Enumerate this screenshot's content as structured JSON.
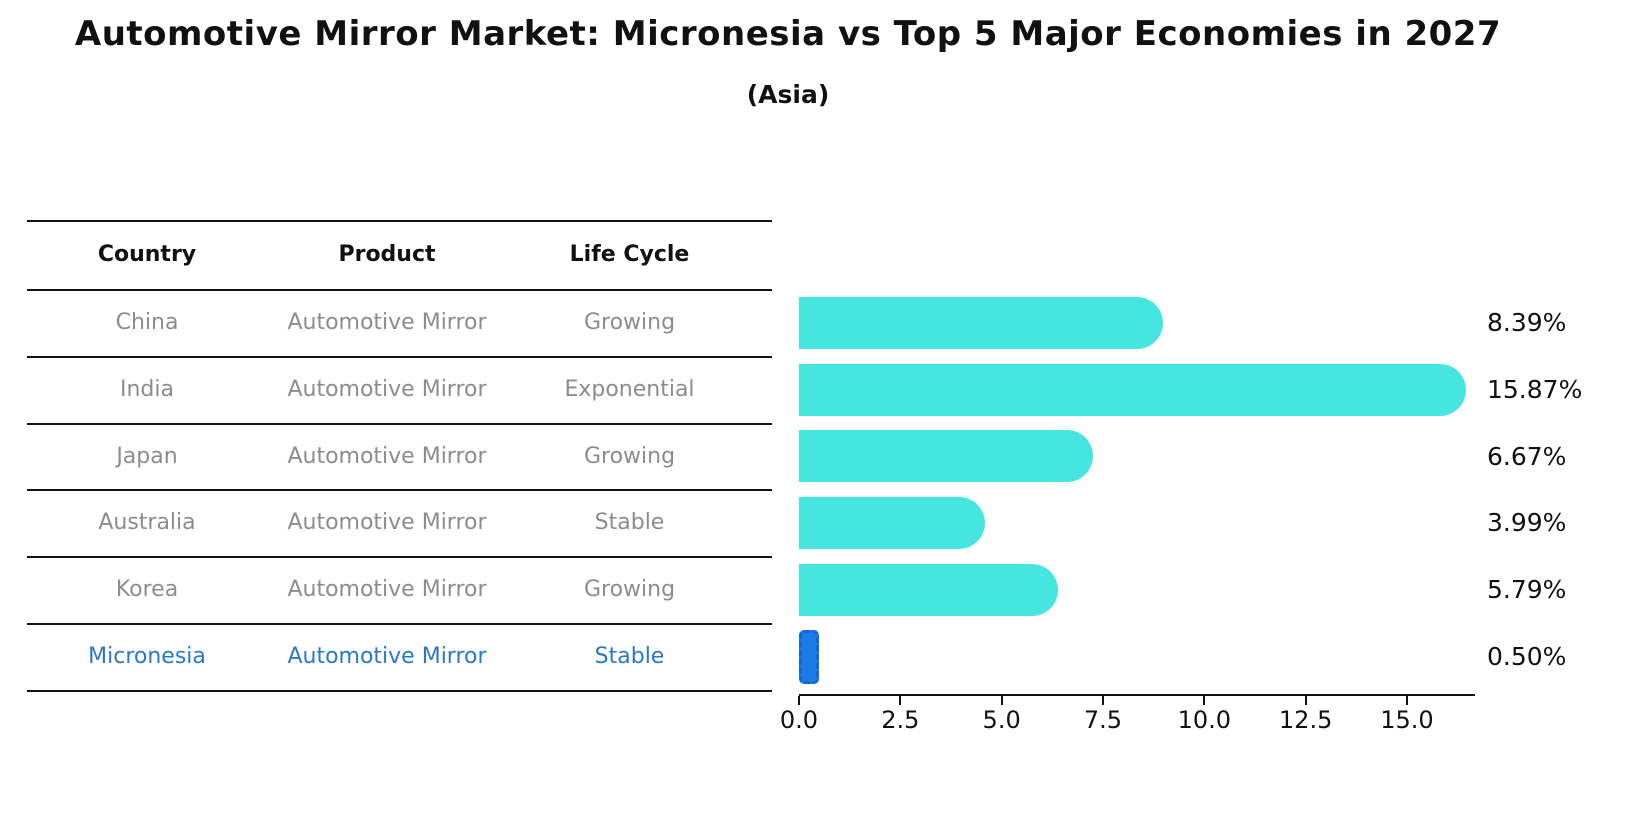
{
  "header": {
    "title": "Automotive Mirror Market: Micronesia vs Top 5 Major Economies in 2027",
    "subtitle": "(Asia)"
  },
  "table": {
    "headers": [
      "Country",
      "Product",
      "Life Cycle"
    ],
    "rows": [
      {
        "country": "China",
        "product": "Automotive Mirror",
        "life_cycle": "Growing",
        "highlight": false
      },
      {
        "country": "India",
        "product": "Automotive Mirror",
        "life_cycle": "Exponential",
        "highlight": false
      },
      {
        "country": "Japan",
        "product": "Automotive Mirror",
        "life_cycle": "Growing",
        "highlight": false
      },
      {
        "country": "Australia",
        "product": "Automotive Mirror",
        "life_cycle": "Stable",
        "highlight": false
      },
      {
        "country": "Korea",
        "product": "Automotive Mirror",
        "life_cycle": "Growing",
        "highlight": false
      },
      {
        "country": "Micronesia",
        "product": "Automotive Mirror",
        "life_cycle": "Stable",
        "highlight": true
      }
    ]
  },
  "chart_data": {
    "type": "bar",
    "orientation": "horizontal",
    "title": "Automotive Mirror Market: Micronesia vs Top 5 Major Economies in 2027",
    "subtitle": "(Asia)",
    "categories": [
      "China",
      "India",
      "Japan",
      "Australia",
      "Korea",
      "Micronesia"
    ],
    "values": [
      8.39,
      15.87,
      6.67,
      3.99,
      5.79,
      0.5
    ],
    "value_labels": [
      "8.39%",
      "15.87%",
      "6.67%",
      "3.99%",
      "5.79%",
      "0.50%"
    ],
    "highlight_index": 5,
    "x_tick_values": [
      0,
      2.5,
      5,
      7.5,
      10,
      12.5,
      15
    ],
    "x_tick_labels": [
      "0.0",
      "2.5",
      "5.0",
      "7.5",
      "10.0",
      "12.5",
      "15.0"
    ],
    "xlim": [
      0,
      16.7
    ],
    "grid": false,
    "legend": false,
    "xlabel": "",
    "ylabel": ""
  },
  "colors": {
    "bar": "#46e5e0",
    "highlight_bar": "#1b7ce5",
    "highlight_bar_border": "#1565d8",
    "highlight_text": "#2b78c8",
    "row_text": "#8c8c8c",
    "line": "#111111"
  }
}
